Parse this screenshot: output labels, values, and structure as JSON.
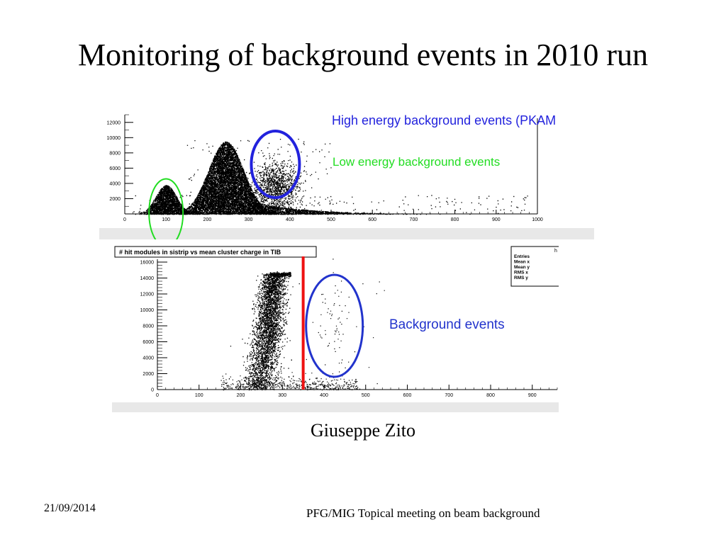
{
  "slide": {
    "title": "Monitoring of background events in 2010 run",
    "author": "Giuseppe Zito",
    "date": "21/09/2014",
    "meeting": "PFG/MIG Topical meeting on beam background"
  },
  "colors": {
    "high_energy_annotation": "#2222dd",
    "low_energy_annotation": "#22dd22",
    "background_annotation": "#2233cc",
    "cut_line": "#ee1111",
    "panel_frame": "#d0d0d0"
  },
  "chart_data": [
    {
      "type": "scatter",
      "title": "",
      "xlabel": "",
      "ylabel": "",
      "xlim": [
        0,
        1000
      ],
      "ylim": [
        0,
        13000
      ],
      "x_ticks": [
        "0",
        "100",
        "200",
        "300",
        "400",
        "500",
        "600",
        "700",
        "800",
        "900",
        "1000"
      ],
      "y_ticks": [
        "2000",
        "4000",
        "6000",
        "8000",
        "10000",
        "12000"
      ],
      "annotations": {
        "high_energy": "High energy background events (PKAM",
        "low_energy": "Low energy background events"
      },
      "density_regions": [
        {
          "x_center": 100,
          "x_spread": 25,
          "y_peak": 2500,
          "kind": "low energy cluster"
        },
        {
          "x_center": 245,
          "x_spread": 45,
          "y_peak": 9500,
          "kind": "main collision band"
        },
        {
          "x_center": 360,
          "x_spread": 30,
          "y_peak": 7000,
          "kind": "high energy cluster"
        }
      ],
      "circled_regions": [
        {
          "x_center": 365,
          "y_center": 6500,
          "color": "blue"
        },
        {
          "x_center": 100,
          "y_center": 2000,
          "color": "green"
        }
      ]
    },
    {
      "type": "scatter",
      "title": "# hit modules in sistrip vs mean cluster charge in TIB",
      "xlabel": "",
      "ylabel": "",
      "xlim": [
        0,
        960
      ],
      "ylim": [
        0,
        16000
      ],
      "x_ticks": [
        "0",
        "100",
        "200",
        "300",
        "400",
        "500",
        "600",
        "700",
        "800",
        "900"
      ],
      "y_ticks": [
        "0",
        "2000",
        "4000",
        "6000",
        "8000",
        "10000",
        "12000",
        "14000",
        "16000"
      ],
      "stats_box": [
        "Entries",
        "Mean x",
        "Mean y",
        "RMS x",
        "RMS y"
      ],
      "stats_header": "h",
      "annotation": "Background events",
      "cut_value_x": 350,
      "circled_region": {
        "x_center": 425,
        "y_center": 8000,
        "color": "blue"
      }
    }
  ]
}
